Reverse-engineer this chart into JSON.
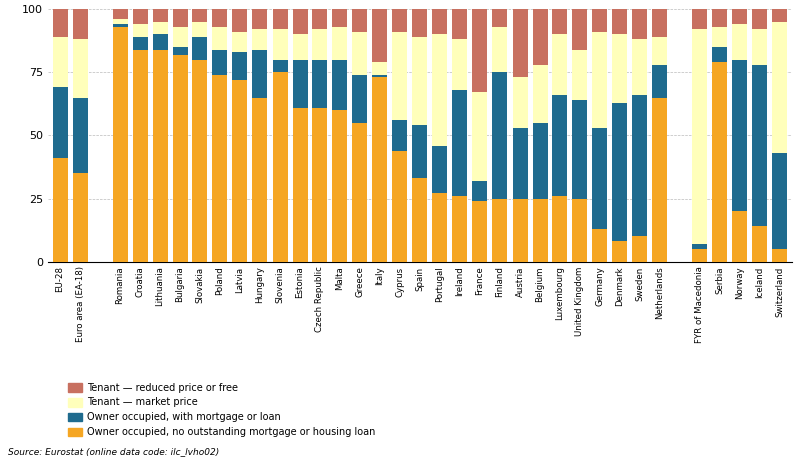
{
  "categories": [
    "EU-28",
    "Euro area (EA-18)",
    "",
    "Romania",
    "Croatia",
    "Lithuania",
    "Bulgaria",
    "Slovakia",
    "Poland",
    "Latvia",
    "Hungary",
    "Slovenia",
    "Estonia",
    "Czech Republic",
    "Malta",
    "Greece",
    "Italy",
    "Cyprus",
    "Spain",
    "Portugal",
    "Ireland",
    "France",
    "Finland",
    "Austria",
    "Belgium",
    "Luxembourg",
    "United Kingdom",
    "Germany",
    "Denmark",
    "Sweden",
    "Netherlands",
    "",
    "FYR of Macedonia",
    "Serbia",
    "Norway",
    "Iceland",
    "Switzerland"
  ],
  "owner_no_mortgage": [
    41,
    35,
    0,
    93,
    84,
    84,
    82,
    80,
    74,
    72,
    65,
    75,
    61,
    61,
    60,
    55,
    73,
    44,
    33,
    27,
    26,
    24,
    25,
    25,
    25,
    26,
    25,
    13,
    8,
    10,
    65,
    0,
    5,
    79,
    20,
    14,
    5
  ],
  "owner_with_mortgage": [
    28,
    30,
    0,
    1,
    5,
    6,
    3,
    9,
    10,
    11,
    19,
    5,
    19,
    19,
    20,
    19,
    1,
    12,
    21,
    19,
    42,
    8,
    50,
    28,
    30,
    40,
    39,
    40,
    55,
    56,
    13,
    0,
    2,
    6,
    60,
    64,
    38
  ],
  "tenant_market": [
    20,
    23,
    0,
    2,
    5,
    5,
    8,
    6,
    9,
    8,
    8,
    12,
    10,
    12,
    13,
    17,
    5,
    35,
    35,
    44,
    20,
    35,
    18,
    20,
    23,
    24,
    20,
    38,
    27,
    22,
    11,
    0,
    85,
    8,
    14,
    14,
    52
  ],
  "tenant_reduced": [
    11,
    12,
    0,
    4,
    6,
    5,
    7,
    5,
    7,
    9,
    8,
    8,
    10,
    8,
    7,
    9,
    21,
    9,
    11,
    10,
    12,
    33,
    7,
    27,
    22,
    10,
    16,
    9,
    10,
    12,
    11,
    0,
    8,
    7,
    6,
    8,
    5
  ],
  "colors": {
    "owner_no_mortgage": "#F5A623",
    "owner_with_mortgage": "#1F6B8E",
    "tenant_market": "#FFFFBB",
    "tenant_reduced": "#C87060"
  },
  "legend_labels": [
    "Tenant — reduced price or free",
    "Tenant — market price",
    "Owner occupied, with mortgage or loan",
    "Owner occupied, no outstanding mortgage or housing loan"
  ],
  "ylim": [
    0,
    100
  ],
  "yticks": [
    0,
    25,
    50,
    75,
    100
  ],
  "source_text": "Source: Eurostat (online data code: ilc_lvho02)",
  "background_color": "#ffffff",
  "grid_color": "#bbbbbb"
}
